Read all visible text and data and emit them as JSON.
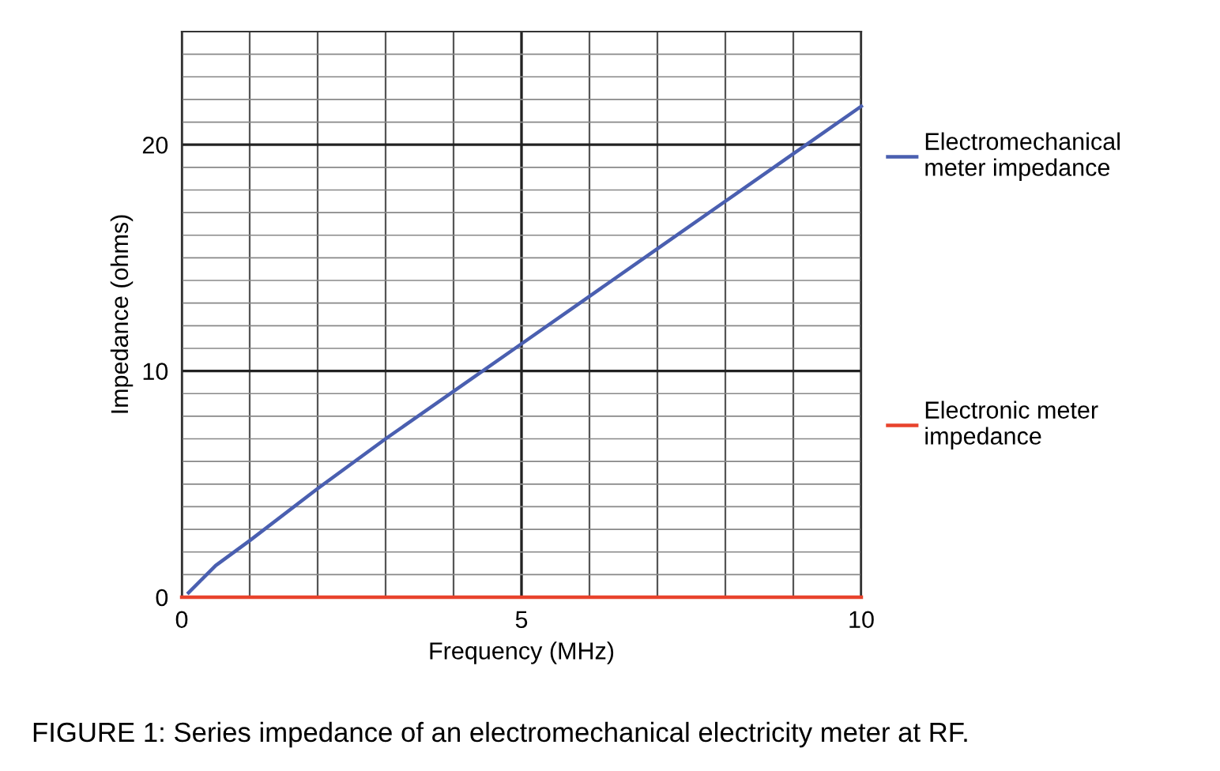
{
  "chart_data": {
    "type": "line",
    "xlabel": "Frequency (MHz)",
    "ylabel": "Impedance (ohms)",
    "xlim": [
      0,
      10
    ],
    "ylim": [
      0,
      25
    ],
    "xticks": [
      0,
      {
        "value": 1,
        "label": null
      },
      {
        "value": 2,
        "label": null
      },
      {
        "value": 3,
        "label": null
      },
      {
        "value": 4,
        "label": null
      },
      5,
      {
        "value": 6,
        "label": null
      },
      {
        "value": 7,
        "label": null
      },
      {
        "value": 8,
        "label": null
      },
      {
        "value": 9,
        "label": null
      },
      10
    ],
    "yticks": [
      0,
      {
        "value": 1,
        "label": null
      },
      {
        "value": 2,
        "label": null
      },
      {
        "value": 3,
        "label": null
      },
      {
        "value": 4,
        "label": null
      },
      {
        "value": 5,
        "label": null
      },
      {
        "value": 6,
        "label": null
      },
      {
        "value": 7,
        "label": null
      },
      {
        "value": 8,
        "label": null
      },
      {
        "value": 9,
        "label": null
      },
      10,
      {
        "value": 11,
        "label": null
      },
      {
        "value": 12,
        "label": null
      },
      {
        "value": 13,
        "label": null
      },
      {
        "value": 14,
        "label": null
      },
      {
        "value": 15,
        "label": null
      },
      {
        "value": 16,
        "label": null
      },
      {
        "value": 17,
        "label": null
      },
      {
        "value": 18,
        "label": null
      },
      {
        "value": 19,
        "label": null
      },
      20,
      {
        "value": 21,
        "label": null
      },
      {
        "value": 22,
        "label": null
      },
      {
        "value": 23,
        "label": null
      },
      {
        "value": 24,
        "label": null
      },
      {
        "value": 25,
        "label": null
      }
    ],
    "grid": true,
    "legend": "right",
    "marker": "none",
    "line_style": "solid",
    "series": [
      {
        "name": "Electromechanical meter impedance",
        "color": "#4a5fb0",
        "x": [
          0.1,
          0.5,
          1,
          2,
          3,
          4,
          5,
          6,
          7,
          8,
          9,
          10
        ],
        "values": [
          0.2,
          1.4,
          2.5,
          4.8,
          7.0,
          9.1,
          11.2,
          13.3,
          15.4,
          17.5,
          19.6,
          21.7
        ]
      },
      {
        "name": "Electronic meter impedance",
        "color": "#e8432c",
        "x": [
          0,
          10
        ],
        "values": [
          0,
          0
        ]
      }
    ],
    "annotations": [
      "FIGURE 1: Series impedance of an electromechanical electricity meter at RF."
    ]
  }
}
